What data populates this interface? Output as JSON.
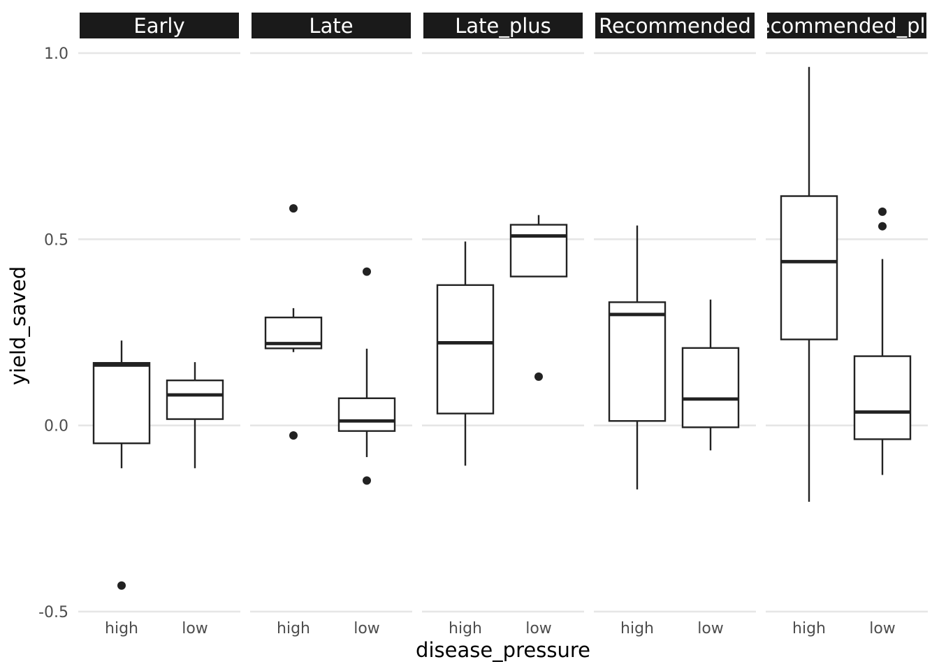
{
  "chart_data": {
    "type": "boxplot",
    "xlabel": "disease_pressure",
    "ylabel": "yield_saved",
    "ylim": [
      -0.5,
      1.0
    ],
    "yticks": [
      -0.5,
      0.0,
      0.5,
      1.0
    ],
    "ytick_labels": [
      "-0.5",
      "0.0",
      "0.5",
      "1.0"
    ],
    "categories": [
      "high",
      "low"
    ],
    "grid": true,
    "panels": [
      {
        "label": "Early",
        "boxes": [
          {
            "category": "high",
            "lower_whisker": -0.115,
            "q1": -0.048,
            "median": 0.162,
            "q3": 0.168,
            "upper_whisker": 0.228,
            "outliers": [
              -0.43
            ]
          },
          {
            "category": "low",
            "lower_whisker": -0.115,
            "q1": 0.017,
            "median": 0.082,
            "q3": 0.121,
            "upper_whisker": 0.17,
            "outliers": []
          }
        ]
      },
      {
        "label": "Late",
        "boxes": [
          {
            "category": "high",
            "lower_whisker": 0.197,
            "q1": 0.207,
            "median": 0.22,
            "q3": 0.29,
            "upper_whisker": 0.315,
            "outliers": [
              0.583,
              -0.027
            ]
          },
          {
            "category": "low",
            "lower_whisker": -0.085,
            "q1": -0.015,
            "median": 0.012,
            "q3": 0.073,
            "upper_whisker": 0.206,
            "outliers": [
              0.413,
              -0.148
            ]
          }
        ]
      },
      {
        "label": "Late_plus",
        "boxes": [
          {
            "category": "high",
            "lower_whisker": -0.108,
            "q1": 0.032,
            "median": 0.222,
            "q3": 0.377,
            "upper_whisker": 0.494,
            "outliers": []
          },
          {
            "category": "low",
            "lower_whisker": 0.4,
            "q1": 0.4,
            "median": 0.509,
            "q3": 0.539,
            "upper_whisker": 0.565,
            "outliers": [
              0.131
            ]
          }
        ]
      },
      {
        "label": "Recommended",
        "boxes": [
          {
            "category": "high",
            "lower_whisker": -0.172,
            "q1": 0.012,
            "median": 0.298,
            "q3": 0.331,
            "upper_whisker": 0.537,
            "outliers": []
          },
          {
            "category": "low",
            "lower_whisker": -0.067,
            "q1": -0.005,
            "median": 0.071,
            "q3": 0.208,
            "upper_whisker": 0.338,
            "outliers": []
          }
        ]
      },
      {
        "label": "Recommended_plus",
        "boxes": [
          {
            "category": "high",
            "lower_whisker": -0.205,
            "q1": 0.231,
            "median": 0.44,
            "q3": 0.616,
            "upper_whisker": 0.963,
            "outliers": []
          },
          {
            "category": "low",
            "lower_whisker": -0.133,
            "q1": -0.037,
            "median": 0.036,
            "q3": 0.186,
            "upper_whisker": 0.447,
            "outliers": [
              0.574,
              0.535
            ]
          }
        ]
      }
    ]
  }
}
